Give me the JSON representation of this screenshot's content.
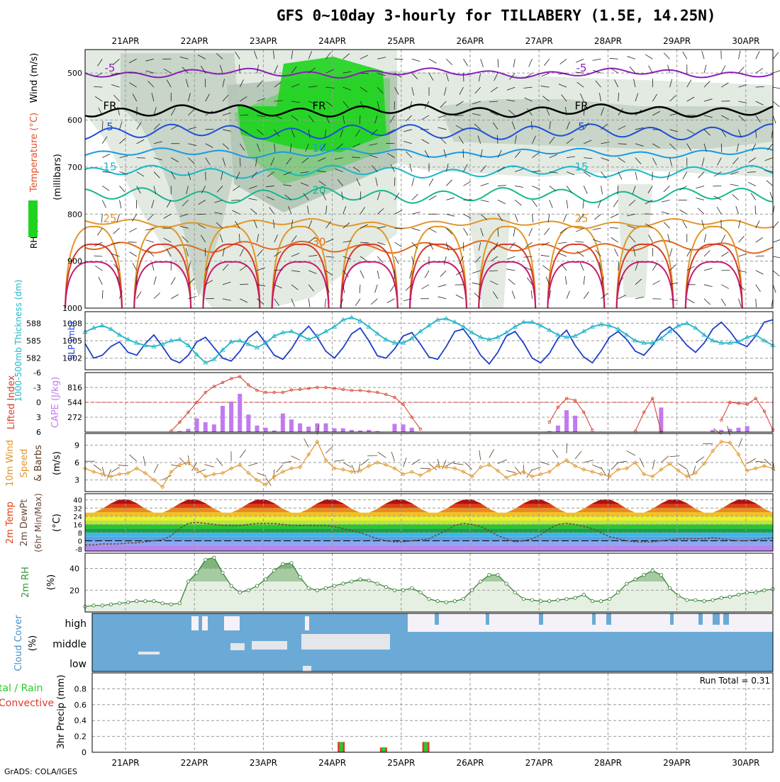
{
  "title": "GFS 0~10day 3-hourly for TILLABERY (1.5E, 14.25N)",
  "credit": "GrADS: COLA/IGES",
  "dates": [
    "21APR",
    "22APR",
    "23APR",
    "24APR",
    "25APR",
    "26APR",
    "27APR",
    "28APR",
    "29APR",
    "30APR"
  ],
  "chart_data": [
    {
      "panel": "upper-air",
      "type": "heatmap",
      "ylabel_parts": [
        "RH (%)",
        "Temperature (°C)",
        "Wind (m/s)"
      ],
      "ylabel_units": "(millibars)",
      "y_ticks": [
        500,
        600,
        700,
        800,
        900,
        1000
      ],
      "ylim": [
        450,
        1000
      ],
      "x": [
        "21APR",
        "22APR",
        "23APR",
        "24APR",
        "25APR",
        "26APR",
        "27APR",
        "28APR",
        "29APR",
        "30APR"
      ],
      "isotherms": [
        {
          "label": "-5",
          "pressure": 500,
          "color": "#8a1fb8"
        },
        {
          "label": "FR",
          "pressure": 580,
          "color": "#000000"
        },
        {
          "label": "5",
          "pressure": 625,
          "color": "#1e4fd8"
        },
        {
          "label": "10",
          "pressure": 670,
          "color": "#1a9ae0"
        },
        {
          "label": "15",
          "pressure": 710,
          "color": "#18b7c8"
        },
        {
          "label": "20",
          "pressure": 760,
          "color": "#17b890"
        },
        {
          "label": "25",
          "pressure": 820,
          "color": "#e0962a"
        },
        {
          "label": "30",
          "pressure": 870,
          "color": "#e06a20"
        }
      ],
      "rh_contour_labels": [
        "30",
        "50",
        "30",
        "30",
        "30",
        "30"
      ]
    },
    {
      "panel": "thickness-slp",
      "type": "line",
      "ylabel_left": "1000-500mb Thickness (dm)",
      "ylabel_right": "SLP (mb)",
      "y_ticks_left": [
        582,
        585,
        588
      ],
      "y_ticks_right": [
        1002,
        1005,
        1008
      ],
      "ylim": [
        1000,
        1010
      ],
      "series": [
        {
          "color": "#1f3ec8",
          "values": [
            1004.5,
            1002.0,
            1002.5,
            1004.0,
            1004.8,
            1003.0,
            1002.5,
            1004.5,
            1006.0,
            1004.0,
            1001.8,
            1001.2,
            1002.5,
            1004.8,
            1005.6,
            1003.8,
            1002.0,
            1001.5,
            1003.2,
            1005.5,
            1006.6,
            1004.6,
            1002.5,
            1001.8,
            1003.6,
            1006.0,
            1007.5,
            1005.6,
            1003.2,
            1002.0,
            1003.8,
            1006.2,
            1007.2,
            1005.0,
            1002.4,
            1002.0,
            1003.6,
            1005.8,
            1006.4,
            1004.4,
            1002.2,
            1001.8,
            1004.0,
            1006.6,
            1007.0,
            1005.0,
            1002.5,
            1001.0,
            1003.0,
            1005.8,
            1006.6,
            1004.6,
            1002.0,
            1001.2,
            1002.8,
            1005.4,
            1006.8,
            1004.2,
            1002.2,
            1001.2,
            1003.2,
            1005.6,
            1006.6,
            1005.2,
            1003.2,
            1002.5,
            1004.2,
            1006.4,
            1007.4,
            1006.0,
            1004.2,
            1003.0,
            1004.6,
            1007.0,
            1008.2,
            1006.6,
            1004.6,
            1004.0,
            1005.8,
            1008.2,
            1008.6
          ]
        },
        {
          "color": "#22b4c8",
          "markers": "triangle",
          "values": [
            1006.5,
            1007.2,
            1007.6,
            1007.0,
            1006.0,
            1005.2,
            1004.6,
            1004.2,
            1004.0,
            1004.4,
            1005.0,
            1005.2,
            1004.2,
            1002.6,
            1001.2,
            1001.8,
            1003.4,
            1004.8,
            1005.0,
            1004.4,
            1003.8,
            1004.6,
            1005.8,
            1006.4,
            1006.6,
            1006.0,
            1005.2,
            1005.8,
            1006.6,
            1007.4,
            1008.6,
            1009.0,
            1008.4,
            1007.4,
            1006.2,
            1005.2,
            1004.6,
            1004.6,
            1005.4,
            1006.6,
            1007.6,
            1008.6,
            1008.8,
            1008.2,
            1007.4,
            1006.4,
            1005.6,
            1005.2,
            1005.6,
            1006.4,
            1007.4,
            1008.2,
            1008.2,
            1007.6,
            1006.8,
            1006.0,
            1005.6,
            1005.8,
            1006.6,
            1007.4,
            1007.8,
            1007.6,
            1007.0,
            1006.0,
            1005.0,
            1004.6,
            1004.6,
            1005.4,
            1006.6,
            1007.6,
            1008.0,
            1007.2,
            1006.0,
            1005.0,
            1004.6,
            1004.6,
            1004.8,
            1005.6,
            1006.0,
            1005.0,
            1004.2
          ]
        }
      ]
    },
    {
      "panel": "cape-li",
      "type": "bar",
      "ylabel_left": "Lifted Index",
      "ylabel_right": "CAPE (J/kg)",
      "y_ticks_left": [
        "-6",
        "-3",
        "0",
        "3",
        "6"
      ],
      "y_ticks_right": [
        272,
        544,
        816
      ],
      "ylim": [
        0,
        1088
      ],
      "cape_values": [
        0,
        0,
        0,
        0,
        0,
        0,
        0,
        0,
        0,
        0,
        0,
        20,
        60,
        250,
        180,
        140,
        480,
        560,
        700,
        320,
        120,
        80,
        30,
        340,
        230,
        160,
        100,
        160,
        160,
        70,
        70,
        40,
        30,
        40,
        20,
        0,
        150,
        140,
        80,
        0,
        0,
        0,
        0,
        0,
        0,
        0,
        0,
        0,
        0,
        0,
        0,
        0,
        0,
        0,
        20,
        120,
        400,
        300,
        0,
        0,
        0,
        0,
        0,
        0,
        0,
        0,
        0,
        450,
        0,
        0,
        0,
        0,
        0,
        40,
        40,
        60,
        80,
        110,
        0,
        0,
        0
      ],
      "li_values": [
        null,
        null,
        null,
        null,
        null,
        null,
        null,
        null,
        null,
        null,
        5.8,
        4.0,
        2.0,
        0.0,
        -2.0,
        -3.2,
        -4.0,
        -4.8,
        -5.2,
        -3.5,
        -2.4,
        -2.0,
        -2.0,
        -2.0,
        -2.5,
        -2.6,
        -2.8,
        -3.0,
        -3.0,
        -2.8,
        -2.6,
        -2.4,
        -2.4,
        -2.2,
        -2.0,
        -1.6,
        -1.0,
        0.4,
        3.0,
        5.4,
        null,
        null,
        null,
        null,
        null,
        null,
        null,
        null,
        null,
        null,
        null,
        null,
        null,
        null,
        4.0,
        1.0,
        -0.8,
        -0.4,
        2.0,
        5.6,
        null,
        null,
        null,
        null,
        5.8,
        2.0,
        -0.8,
        6.0,
        null,
        null,
        null,
        null,
        null,
        null,
        3.6,
        0.0,
        0.2,
        0.4,
        -0.8,
        1.8,
        5.6
      ],
      "li_reference": 0
    },
    {
      "panel": "wind-10m",
      "type": "line",
      "ylabel": "10m Wind Speed & Barbs (m/s)",
      "ylabel_units": "(m/s)",
      "y_ticks": [
        3,
        6,
        9
      ],
      "ylim": [
        1,
        11
      ],
      "values": [
        5.0,
        4.4,
        4.0,
        3.6,
        4.0,
        4.2,
        5.0,
        4.2,
        3.0,
        1.8,
        4.4,
        5.6,
        6.0,
        4.8,
        3.6,
        4.0,
        4.2,
        5.0,
        5.6,
        4.2,
        3.0,
        2.2,
        3.6,
        4.4,
        5.0,
        5.2,
        7.4,
        9.6,
        6.4,
        5.0,
        4.8,
        4.4,
        4.6,
        5.4,
        6.0,
        5.6,
        5.0,
        4.0,
        4.4,
        3.8,
        4.6,
        5.4,
        5.2,
        5.0,
        4.4,
        3.6,
        5.2,
        5.6,
        4.6,
        3.4,
        4.0,
        4.4,
        3.6,
        4.0,
        4.4,
        5.6,
        6.4,
        5.4,
        4.8,
        4.4,
        4.0,
        3.6,
        4.8,
        5.0,
        6.0,
        4.0,
        3.6,
        4.8,
        5.8,
        4.6,
        3.6,
        4.2,
        5.8,
        8.0,
        9.6,
        9.4,
        7.4,
        4.6,
        5.0,
        5.4,
        5.0
      ]
    },
    {
      "panel": "temperature",
      "type": "area",
      "ylabel": "2m Temp 2m DewPt (6hr Min/Max) (°C)",
      "ylabel_units": "(°C)",
      "y_ticks": [
        "-8",
        "0",
        "8",
        "16",
        "24",
        "32",
        "40"
      ],
      "ylim": [
        -10,
        46
      ],
      "temp_min": 27,
      "temp_max": 41,
      "dewpoint": [
        -4,
        -4,
        -3,
        -3,
        -3,
        -2,
        -2,
        -1,
        0,
        1,
        5,
        12,
        17,
        18,
        17,
        16,
        15,
        15,
        15,
        16,
        17,
        17,
        17,
        16,
        15,
        15,
        15,
        15,
        15,
        14,
        12,
        10,
        8,
        5,
        2,
        0,
        -1,
        -1,
        0,
        1,
        2,
        6,
        10,
        15,
        17,
        16,
        14,
        10,
        5,
        2,
        -1,
        0,
        2,
        6,
        12,
        16,
        17,
        16,
        14,
        12,
        8,
        4,
        2,
        0,
        -1,
        -1,
        -1,
        0,
        1,
        2,
        2,
        2,
        2,
        3,
        2,
        1,
        0,
        0,
        1,
        2,
        3
      ]
    },
    {
      "panel": "rh-2m",
      "type": "area",
      "ylabel": "2m RH (%)",
      "ylabel_units": "(%)",
      "y_ticks": [
        20,
        40
      ],
      "ylim": [
        0,
        54
      ],
      "values": [
        5,
        6,
        6,
        7,
        8,
        9,
        10,
        10,
        10,
        8,
        7,
        8,
        28,
        36,
        48,
        50,
        36,
        24,
        18,
        20,
        24,
        30,
        38,
        44,
        45,
        32,
        22,
        20,
        22,
        24,
        26,
        28,
        30,
        29,
        26,
        23,
        20,
        20,
        22,
        18,
        12,
        10,
        9,
        10,
        12,
        20,
        28,
        34,
        34,
        26,
        18,
        12,
        11,
        10,
        10,
        11,
        12,
        13,
        16,
        10,
        10,
        12,
        18,
        26,
        30,
        34,
        38,
        34,
        22,
        15,
        11,
        11,
        10,
        11,
        13,
        14,
        16,
        18,
        18,
        20,
        21
      ]
    },
    {
      "panel": "cloud-cover",
      "type": "heatmap",
      "ylabel": "Cloud Cover (%)",
      "rows": [
        "high",
        "middle",
        "low"
      ]
    },
    {
      "panel": "precip",
      "type": "bar",
      "ylabel_left": "Total / Rain / Convective",
      "ylabel": "3hr Precip (mm)",
      "y_ticks": [
        "0",
        "0.2",
        "0.4",
        "0.6",
        "0.8"
      ],
      "ylim": [
        0,
        1
      ],
      "run_total": "Run Total = 0.31",
      "values": [
        0,
        0,
        0,
        0,
        0,
        0,
        0,
        0,
        0,
        0,
        0,
        0,
        0,
        0,
        0,
        0,
        0,
        0,
        0,
        0,
        0,
        0,
        0,
        0,
        0,
        0,
        0,
        0,
        0,
        0.13,
        0,
        0,
        0,
        0,
        0.06,
        0,
        0,
        0,
        0,
        0.13,
        0,
        0,
        0,
        0,
        0,
        0,
        0,
        0,
        0,
        0,
        0,
        0,
        0,
        0,
        0,
        0,
        0,
        0,
        0,
        0,
        0,
        0,
        0,
        0,
        0,
        0,
        0,
        0,
        0,
        0,
        0,
        0,
        0,
        0,
        0,
        0,
        0,
        0,
        0,
        0,
        0
      ]
    }
  ]
}
